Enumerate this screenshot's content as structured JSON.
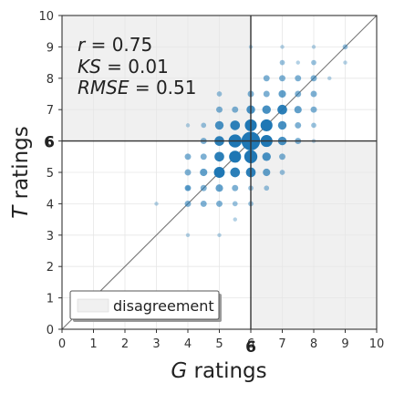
{
  "chart_data": {
    "type": "scatter",
    "xlabel_var": "G",
    "xlabel_rest": " ratings",
    "ylabel_var": "T",
    "ylabel_rest": " ratings",
    "xlim": [
      0,
      10
    ],
    "ylim": [
      0,
      10
    ],
    "xticks": [
      "0",
      "1",
      "2",
      "3",
      "4",
      "5",
      "6",
      "7",
      "8",
      "9",
      "10"
    ],
    "yticks": [
      "0",
      "1",
      "2",
      "3",
      "4",
      "5",
      "6",
      "7",
      "8",
      "9",
      "10"
    ],
    "threshold": 6,
    "threshold_label": "6",
    "grid": true,
    "stats": [
      {
        "var": "r",
        "value": " = 0.75"
      },
      {
        "var": "KS",
        "value": " = 0.01"
      },
      {
        "var": "RMSE",
        "value": " = 0.51"
      }
    ],
    "legend": {
      "label": "disagreement",
      "position": "bottom-left"
    },
    "regions": "disagreement",
    "diagonal": true,
    "point_color": "#1f77b4",
    "region_color": "#f0f0f0",
    "points": [
      [
        6,
        6,
        14
      ],
      [
        5.5,
        6,
        9
      ],
      [
        6,
        5.5,
        9
      ],
      [
        6.5,
        6,
        8
      ],
      [
        6,
        6.5,
        8
      ],
      [
        5.5,
        5.5,
        8
      ],
      [
        6.5,
        6.5,
        8
      ],
      [
        5,
        5,
        7
      ],
      [
        5,
        6,
        6
      ],
      [
        6,
        5,
        6
      ],
      [
        5,
        5.5,
        6
      ],
      [
        5.5,
        5,
        6
      ],
      [
        7,
        7,
        6
      ],
      [
        7,
        6,
        5
      ],
      [
        6,
        7,
        5
      ],
      [
        5.5,
        6.5,
        6
      ],
      [
        6.5,
        5.5,
        5
      ],
      [
        5,
        6.5,
        5
      ],
      [
        6.5,
        5,
        4
      ],
      [
        4.5,
        5,
        4
      ],
      [
        5,
        4.5,
        4
      ],
      [
        7,
        6.5,
        5
      ],
      [
        6.5,
        7,
        5
      ],
      [
        7.5,
        7,
        4
      ],
      [
        7,
        7.5,
        4
      ],
      [
        4.5,
        5.5,
        3
      ],
      [
        5.5,
        4.5,
        3
      ],
      [
        4,
        4,
        3
      ],
      [
        4.5,
        4.5,
        3
      ],
      [
        4,
        5,
        3
      ],
      [
        5,
        4,
        3
      ],
      [
        4,
        4.5,
        3
      ],
      [
        4.5,
        4,
        3
      ],
      [
        4,
        5.5,
        3
      ],
      [
        4.5,
        6,
        3
      ],
      [
        5,
        7,
        3
      ],
      [
        6,
        7.5,
        3
      ],
      [
        7,
        8,
        3
      ],
      [
        7.5,
        8,
        3
      ],
      [
        8,
        8,
        3
      ],
      [
        7,
        5.5,
        3
      ],
      [
        7.5,
        6,
        3
      ],
      [
        7.5,
        6.5,
        3
      ],
      [
        8,
        7,
        3
      ],
      [
        8,
        7.5,
        3
      ],
      [
        6.5,
        7.5,
        3
      ],
      [
        5.5,
        7,
        3
      ],
      [
        5,
        7.5,
        2
      ],
      [
        4.5,
        6.5,
        2
      ],
      [
        6,
        4.5,
        2
      ],
      [
        6.5,
        4.5,
        2
      ],
      [
        5.5,
        4,
        2
      ],
      [
        6,
        4,
        2
      ],
      [
        7,
        5,
        2
      ],
      [
        8,
        6.5,
        2
      ],
      [
        7.5,
        7.5,
        3
      ],
      [
        6.5,
        8,
        3
      ],
      [
        7,
        8.5,
        2
      ],
      [
        8,
        8.5,
        2
      ],
      [
        7.5,
        8.5,
        1
      ],
      [
        8.5,
        8,
        1
      ],
      [
        9,
        9,
        2
      ],
      [
        8,
        9,
        1
      ],
      [
        6,
        9,
        1
      ],
      [
        7,
        9,
        1
      ],
      [
        9,
        8.5,
        1
      ],
      [
        4,
        6.5,
        1
      ],
      [
        3,
        4,
        1
      ],
      [
        4,
        3,
        1
      ],
      [
        5,
        3,
        1
      ],
      [
        4,
        4.5,
        2
      ],
      [
        5.5,
        3.5,
        1
      ],
      [
        8,
        6,
        1
      ]
    ]
  }
}
